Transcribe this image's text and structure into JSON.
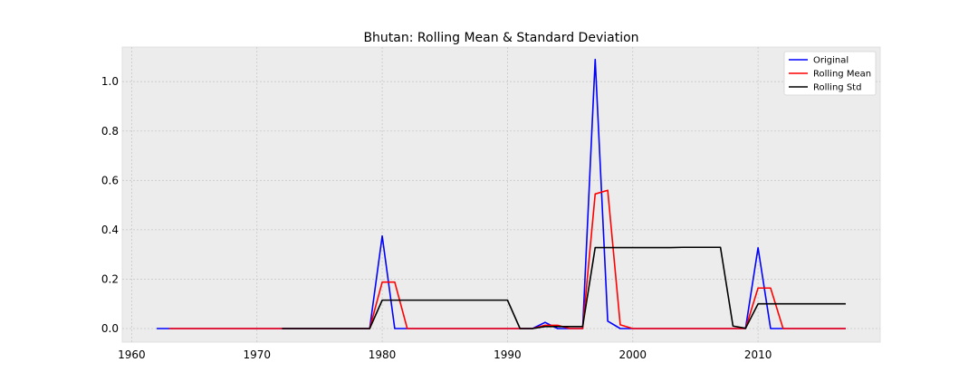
{
  "chart_data": {
    "type": "line",
    "title": "Bhutan: Rolling Mean & Standard Deviation",
    "xlabel": "",
    "ylabel": "",
    "xlim": [
      1959.25,
      2019.75
    ],
    "ylim": [
      -0.055,
      1.14
    ],
    "xticks": [
      1960,
      1970,
      1980,
      1990,
      2000,
      2010
    ],
    "yticks": [
      0.0,
      0.2,
      0.4,
      0.6,
      0.8,
      1.0
    ],
    "ytick_labels": [
      "0.0",
      "0.2",
      "0.4",
      "0.6",
      "0.8",
      "1.0"
    ],
    "grid": true,
    "legend_position": "top-right",
    "background": "#ececec",
    "series": [
      {
        "name": "Original",
        "color": "#0000ff",
        "points": [
          [
            1962,
            0
          ],
          [
            1963,
            0
          ],
          [
            1964,
            0
          ],
          [
            1965,
            0
          ],
          [
            1966,
            0
          ],
          [
            1967,
            0
          ],
          [
            1968,
            0
          ],
          [
            1969,
            0
          ],
          [
            1970,
            0
          ],
          [
            1971,
            0
          ],
          [
            1972,
            0
          ],
          [
            1973,
            0
          ],
          [
            1974,
            0
          ],
          [
            1975,
            0
          ],
          [
            1976,
            0
          ],
          [
            1977,
            0
          ],
          [
            1978,
            0
          ],
          [
            1979,
            0
          ],
          [
            1980,
            0.375
          ],
          [
            1981,
            0
          ],
          [
            1982,
            0
          ],
          [
            1983,
            0
          ],
          [
            1984,
            0
          ],
          [
            1985,
            0
          ],
          [
            1986,
            0
          ],
          [
            1987,
            0
          ],
          [
            1988,
            0
          ],
          [
            1989,
            0
          ],
          [
            1990,
            0
          ],
          [
            1991,
            0
          ],
          [
            1992,
            0
          ],
          [
            1993,
            0.025
          ],
          [
            1994,
            0
          ],
          [
            1995,
            0
          ],
          [
            1996,
            0
          ],
          [
            1997,
            1.09
          ],
          [
            1998,
            0.03
          ],
          [
            1999,
            0
          ],
          [
            2000,
            0
          ],
          [
            2001,
            0
          ],
          [
            2002,
            0
          ],
          [
            2003,
            0
          ],
          [
            2004,
            0
          ],
          [
            2005,
            0
          ],
          [
            2006,
            0
          ],
          [
            2007,
            0
          ],
          [
            2008,
            0
          ],
          [
            2009,
            0
          ],
          [
            2010,
            0.327
          ],
          [
            2011,
            0
          ],
          [
            2012,
            0
          ],
          [
            2013,
            0
          ],
          [
            2014,
            0
          ],
          [
            2015,
            0
          ],
          [
            2016,
            0
          ],
          [
            2017,
            0
          ]
        ]
      },
      {
        "name": "Rolling Mean",
        "color": "#ff0000",
        "points": [
          [
            1963,
            0
          ],
          [
            1964,
            0
          ],
          [
            1965,
            0
          ],
          [
            1966,
            0
          ],
          [
            1967,
            0
          ],
          [
            1968,
            0
          ],
          [
            1969,
            0
          ],
          [
            1970,
            0
          ],
          [
            1971,
            0
          ],
          [
            1972,
            0
          ],
          [
            1973,
            0
          ],
          [
            1974,
            0
          ],
          [
            1975,
            0
          ],
          [
            1976,
            0
          ],
          [
            1977,
            0
          ],
          [
            1978,
            0
          ],
          [
            1979,
            0
          ],
          [
            1980,
            0.188
          ],
          [
            1981,
            0.188
          ],
          [
            1982,
            0
          ],
          [
            1983,
            0
          ],
          [
            1984,
            0
          ],
          [
            1985,
            0
          ],
          [
            1986,
            0
          ],
          [
            1987,
            0
          ],
          [
            1988,
            0
          ],
          [
            1989,
            0
          ],
          [
            1990,
            0
          ],
          [
            1991,
            0
          ],
          [
            1992,
            0
          ],
          [
            1993,
            0.013
          ],
          [
            1994,
            0.013
          ],
          [
            1995,
            0
          ],
          [
            1996,
            0
          ],
          [
            1997,
            0.545
          ],
          [
            1998,
            0.56
          ],
          [
            1999,
            0.015
          ],
          [
            2000,
            0
          ],
          [
            2001,
            0
          ],
          [
            2002,
            0
          ],
          [
            2003,
            0
          ],
          [
            2004,
            0
          ],
          [
            2005,
            0
          ],
          [
            2006,
            0
          ],
          [
            2007,
            0
          ],
          [
            2008,
            0
          ],
          [
            2009,
            0
          ],
          [
            2010,
            0.164
          ],
          [
            2011,
            0.164
          ],
          [
            2012,
            0
          ],
          [
            2013,
            0
          ],
          [
            2014,
            0
          ],
          [
            2015,
            0
          ],
          [
            2016,
            0
          ],
          [
            2017,
            0
          ]
        ]
      },
      {
        "name": "Rolling Std",
        "color": "#000000",
        "points": [
          [
            1972,
            0
          ],
          [
            1973,
            0
          ],
          [
            1974,
            0
          ],
          [
            1975,
            0
          ],
          [
            1976,
            0
          ],
          [
            1977,
            0
          ],
          [
            1978,
            0
          ],
          [
            1979,
            0
          ],
          [
            1980,
            0.115
          ],
          [
            1981,
            0.115
          ],
          [
            1982,
            0.115
          ],
          [
            1983,
            0.115
          ],
          [
            1984,
            0.115
          ],
          [
            1985,
            0.115
          ],
          [
            1986,
            0.115
          ],
          [
            1987,
            0.115
          ],
          [
            1988,
            0.115
          ],
          [
            1989,
            0.115
          ],
          [
            1990,
            0.115
          ],
          [
            1991,
            0
          ],
          [
            1992,
            0
          ],
          [
            1993,
            0.008
          ],
          [
            1994,
            0.008
          ],
          [
            1995,
            0.008
          ],
          [
            1996,
            0.008
          ],
          [
            1997,
            0.328
          ],
          [
            1998,
            0.328
          ],
          [
            1999,
            0.328
          ],
          [
            2000,
            0.328
          ],
          [
            2001,
            0.328
          ],
          [
            2002,
            0.328
          ],
          [
            2003,
            0.328
          ],
          [
            2004,
            0.329
          ],
          [
            2005,
            0.329
          ],
          [
            2006,
            0.329
          ],
          [
            2007,
            0.329
          ],
          [
            2008,
            0.01
          ],
          [
            2009,
            0.001
          ],
          [
            2010,
            0.1
          ],
          [
            2011,
            0.1
          ],
          [
            2012,
            0.1
          ],
          [
            2013,
            0.1
          ],
          [
            2014,
            0.1
          ],
          [
            2015,
            0.1
          ],
          [
            2016,
            0.1
          ],
          [
            2017,
            0.1
          ]
        ]
      }
    ]
  }
}
